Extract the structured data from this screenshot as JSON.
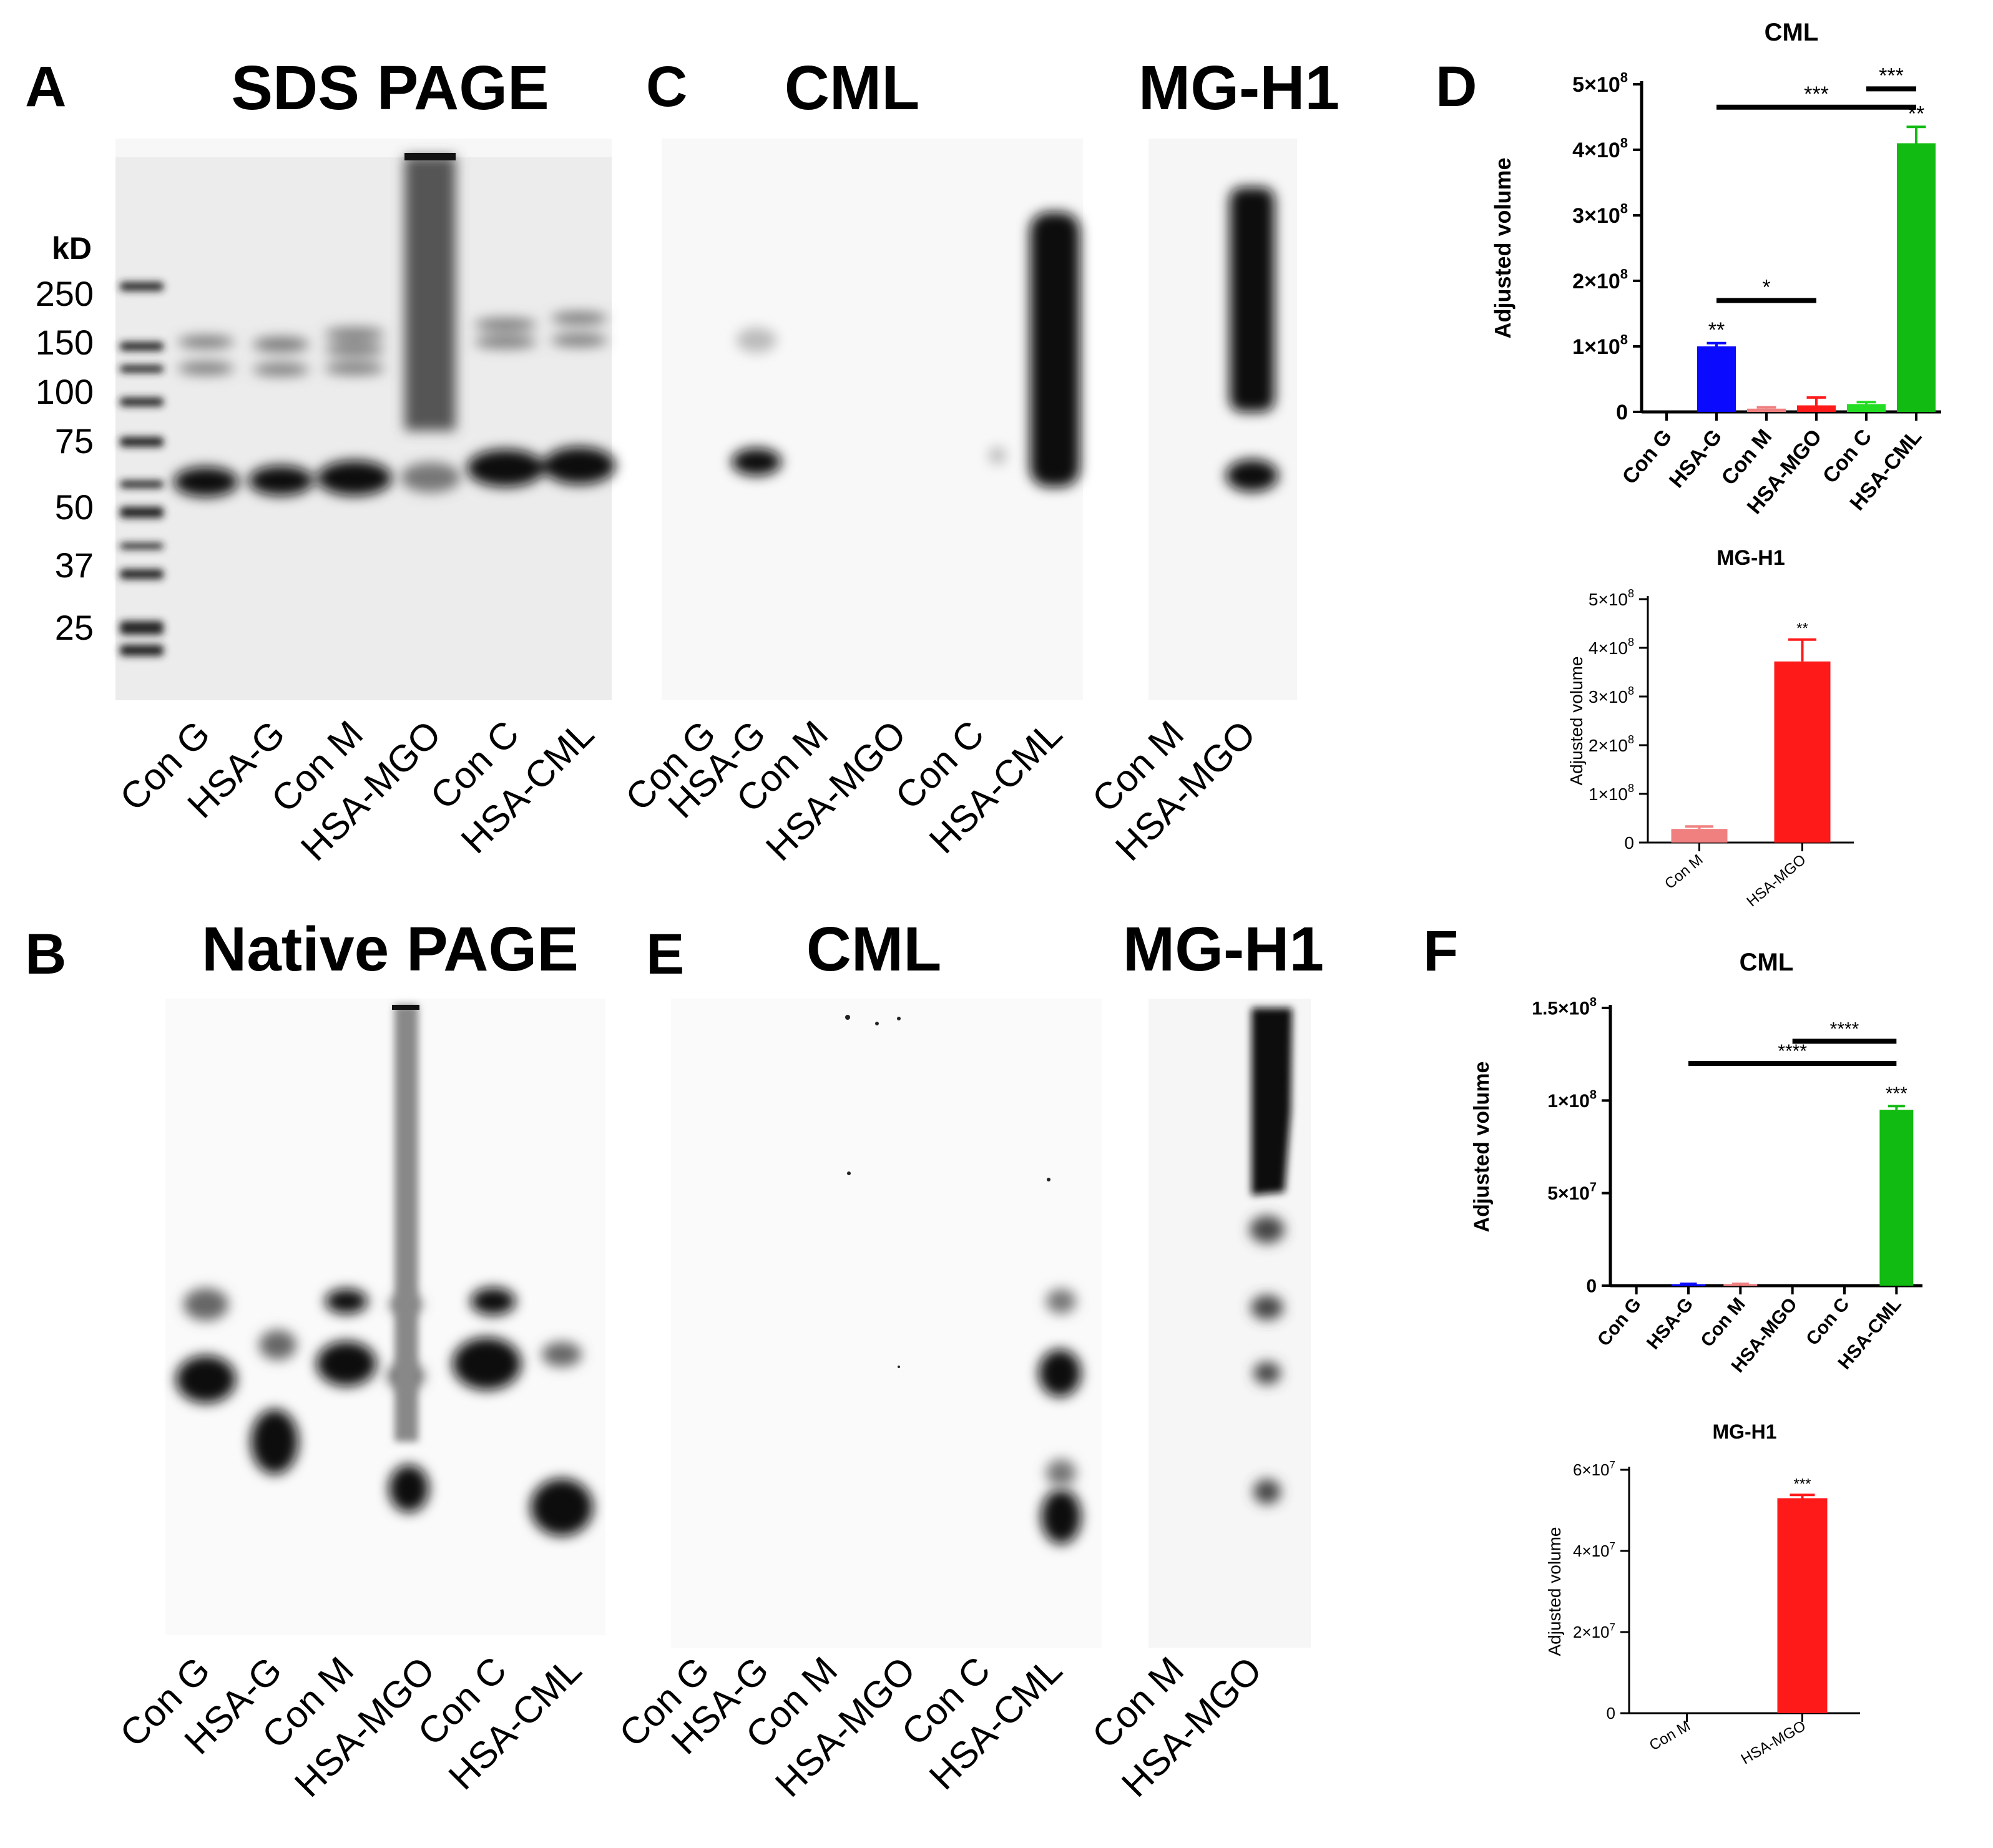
{
  "panels": {
    "A": {
      "letter": "A",
      "title": "SDS PAGE",
      "kd_label": "kD",
      "markers": [
        "250",
        "150",
        "100",
        "75",
        "50",
        "37",
        "25"
      ],
      "lanes": [
        "Con G",
        "HSA-G",
        "Con M",
        "HSA-MGO",
        "Con C",
        "HSA-CML"
      ]
    },
    "B": {
      "letter": "B",
      "title": "Native PAGE",
      "lanes": [
        "Con G",
        "HSA-G",
        "Con M",
        "HSA-MGO",
        "Con C",
        "HSA-CML"
      ]
    },
    "C": {
      "letter": "C",
      "title_cml": "CML",
      "title_mgh1": "MG-H1",
      "lanes_cml": [
        "Con G",
        "HSA-G",
        "Con M",
        "HSA-MGO",
        "Con C",
        "HSA-CML"
      ],
      "lanes_mgh1": [
        "Con M",
        "HSA-MGO"
      ]
    },
    "D": {
      "letter": "D"
    },
    "E": {
      "letter": "E",
      "title_cml": "CML",
      "title_mgh1": "MG-H1",
      "lanes_cml": [
        "Con G",
        "HSA-G",
        "Con M",
        "HSA-MGO",
        "Con C",
        "HSA-CML"
      ],
      "lanes_mgh1": [
        "Con M",
        "HSA-MGO"
      ]
    },
    "F": {
      "letter": "F"
    }
  },
  "chart_data": [
    {
      "id": "D-CML",
      "type": "bar",
      "title": "CML",
      "ylabel": "Adjusted volume",
      "categories": [
        "Con G",
        "HSA-G",
        "Con M",
        "HSA-MGO",
        "Con C",
        "HSA-CML"
      ],
      "values": [
        0,
        100000000,
        5000000,
        10000000,
        12000000,
        410000000
      ],
      "errors": [
        0,
        5000000,
        2000000,
        12000000,
        3000000,
        25000000
      ],
      "colors": [
        "#000000",
        "#0a0aff",
        "#f08080",
        "#ff1a1a",
        "#22dd22",
        "#11bb11"
      ],
      "ylim": [
        0,
        500000000
      ],
      "yticks": [
        {
          "v": 0,
          "m": "0",
          "e": ""
        },
        {
          "v": 100000000,
          "m": "1×10",
          "e": "8"
        },
        {
          "v": 200000000,
          "m": "2×10",
          "e": "8"
        },
        {
          "v": 300000000,
          "m": "3×10",
          "e": "8"
        },
        {
          "v": 400000000,
          "m": "4×10",
          "e": "8"
        },
        {
          "v": 500000000,
          "m": "5×10",
          "e": "8"
        }
      ],
      "bar_labels": [
        "",
        "**",
        "",
        "",
        "",
        "**"
      ],
      "brackets": [
        {
          "from": 4,
          "to": 5,
          "y": 493000000,
          "label": "***"
        },
        {
          "from": 1,
          "to": 5,
          "y": 465000000,
          "label": "***"
        },
        {
          "from": 1,
          "to": 3,
          "y": 170000000,
          "label": "*"
        }
      ]
    },
    {
      "id": "D-MGH1",
      "type": "bar",
      "title": "MG-H1",
      "ylabel": "Adjusted volume",
      "categories": [
        "Con M",
        "HSA-MGO"
      ],
      "values": [
        28000000,
        372000000
      ],
      "errors": [
        5000000,
        45000000
      ],
      "colors": [
        "#f08080",
        "#ff1a1a"
      ],
      "ylim": [
        0,
        500000000
      ],
      "yticks": [
        {
          "v": 0,
          "m": "0",
          "e": ""
        },
        {
          "v": 100000000,
          "m": "1×10",
          "e": "8"
        },
        {
          "v": 200000000,
          "m": "2×10",
          "e": "8"
        },
        {
          "v": 300000000,
          "m": "3×10",
          "e": "8"
        },
        {
          "v": 400000000,
          "m": "4×10",
          "e": "8"
        },
        {
          "v": 500000000,
          "m": "5×10",
          "e": "8"
        }
      ],
      "bar_labels": [
        "",
        "**"
      ],
      "brackets": []
    },
    {
      "id": "F-CML",
      "type": "bar",
      "title": "CML",
      "ylabel": "Adjusted volume",
      "categories": [
        "Con G",
        "HSA-G",
        "Con M",
        "HSA-MGO",
        "Con C",
        "HSA-CML"
      ],
      "values": [
        0,
        800000,
        800000,
        0,
        0,
        95000000
      ],
      "errors": [
        0,
        200000,
        200000,
        0,
        0,
        2000000
      ],
      "colors": [
        "#000000",
        "#0a0aff",
        "#f08080",
        "#ff1a1a",
        "#22dd22",
        "#11bb11"
      ],
      "ylim": [
        0,
        150000000
      ],
      "yticks": [
        {
          "v": 0,
          "m": "0",
          "e": ""
        },
        {
          "v": 50000000,
          "m": "5×10",
          "e": "7"
        },
        {
          "v": 100000000,
          "m": "1×10",
          "e": "8"
        },
        {
          "v": 150000000,
          "m": "1.5×10",
          "e": "8"
        }
      ],
      "bar_labels": [
        "",
        "",
        "",
        "",
        "",
        "***"
      ],
      "brackets": [
        {
          "from": 3,
          "to": 5,
          "y": 132000000,
          "label": "****"
        },
        {
          "from": 1,
          "to": 5,
          "y": 120000000,
          "label": "****"
        }
      ]
    },
    {
      "id": "F-MGH1",
      "type": "bar",
      "title": "MG-H1",
      "ylabel": "Adjusted volume",
      "categories": [
        "Con M",
        "HSA-MGO"
      ],
      "values": [
        0,
        53000000
      ],
      "errors": [
        0,
        800000
      ],
      "colors": [
        "#f08080",
        "#ff1a1a"
      ],
      "ylim": [
        0,
        60000000
      ],
      "yticks": [
        {
          "v": 0,
          "m": "0",
          "e": ""
        },
        {
          "v": 20000000,
          "m": "2×10",
          "e": "7"
        },
        {
          "v": 40000000,
          "m": "4×10",
          "e": "7"
        },
        {
          "v": 60000000,
          "m": "6×10",
          "e": "7"
        }
      ],
      "bar_labels": [
        "",
        "***"
      ],
      "brackets": []
    }
  ]
}
